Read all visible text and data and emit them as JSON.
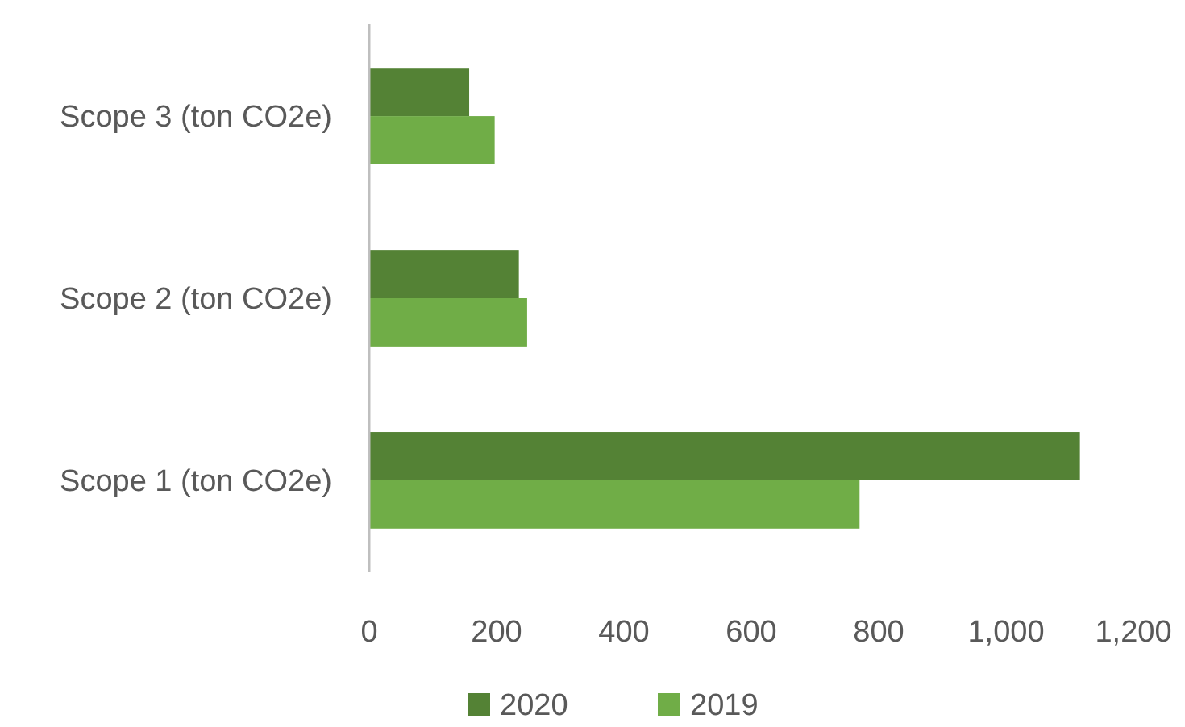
{
  "chart_data": {
    "type": "bar",
    "orientation": "horizontal",
    "categories": [
      "Scope 3 (ton CO2e)",
      "Scope 2 (ton CO2e)",
      "Scope 1 (ton CO2e)"
    ],
    "series": [
      {
        "name": "2020",
        "color": "#548235",
        "values": [
          157,
          235,
          1116
        ]
      },
      {
        "name": "2019",
        "color": "#70ad47",
        "values": [
          197,
          248,
          770
        ]
      }
    ],
    "xlim": [
      0,
      1200
    ],
    "xticks": [
      0,
      200,
      400,
      600,
      800,
      {
        "value": 1000,
        "label": "1,000"
      },
      {
        "value": 1200,
        "label": "1,200"
      }
    ],
    "grid": false,
    "legend": "bottom"
  }
}
